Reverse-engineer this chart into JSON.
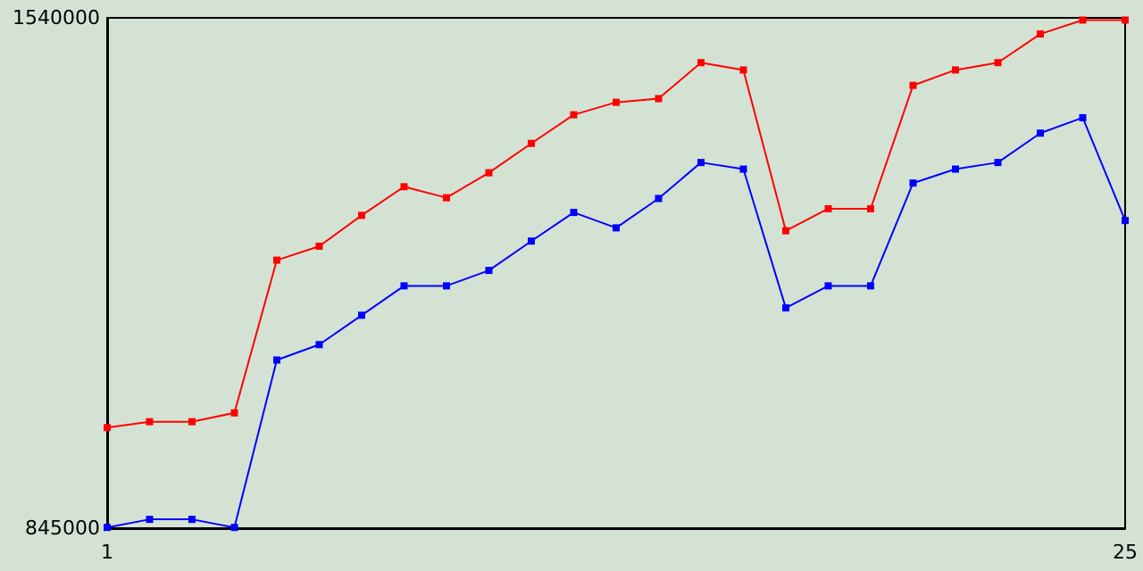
{
  "chart_data": {
    "type": "line",
    "x": [
      1,
      2,
      3,
      4,
      5,
      6,
      7,
      8,
      9,
      10,
      11,
      12,
      13,
      14,
      15,
      16,
      17,
      18,
      19,
      20,
      21,
      22,
      23,
      24,
      25
    ],
    "series": [
      {
        "color": "#ff0000",
        "values": [
          982000,
          990000,
          990000,
          1002000,
          1210000,
          1229000,
          1271000,
          1310000,
          1295000,
          1329000,
          1369000,
          1408000,
          1425000,
          1430000,
          1479000,
          1469000,
          1250000,
          1280000,
          1280000,
          1448000,
          1469000,
          1479000,
          1518000,
          1537000,
          1537000
        ]
      },
      {
        "color": "#0000ff",
        "values": [
          846000,
          857000,
          857000,
          846000,
          1074000,
          1095000,
          1135000,
          1175000,
          1175000,
          1196000,
          1236000,
          1275000,
          1254000,
          1294000,
          1343000,
          1334000,
          1145000,
          1175000,
          1175000,
          1315000,
          1334000,
          1343000,
          1383000,
          1404000,
          1264000
        ]
      }
    ],
    "xlim": [
      1,
      25
    ],
    "xticks": [
      1,
      25
    ],
    "ylim": [
      845000,
      1540000
    ],
    "yticks": [
      845000,
      1540000
    ],
    "grid": false,
    "marker": "square",
    "line_style": "solid"
  }
}
